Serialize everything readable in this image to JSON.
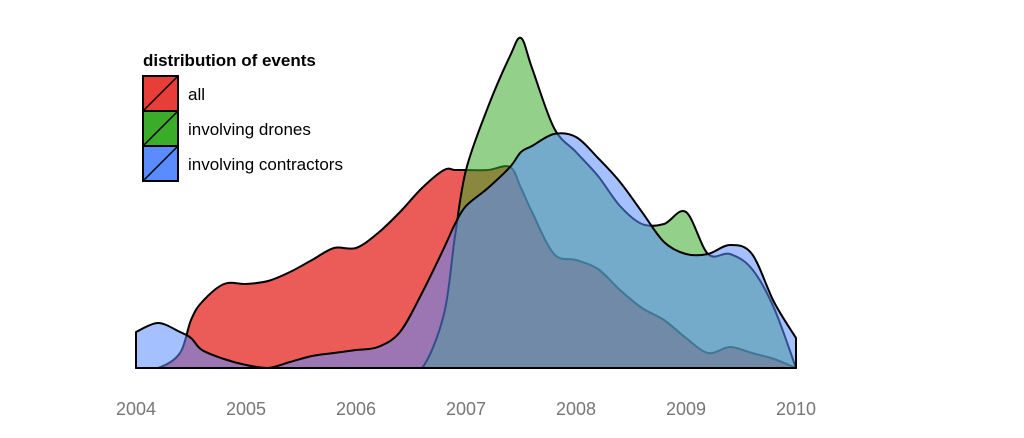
{
  "chart_data": {
    "type": "area",
    "title": "",
    "xlabel": "",
    "ylabel": "",
    "xlim": [
      2004,
      2010
    ],
    "ylim": [
      0,
      1
    ],
    "grid": false,
    "x_ticks": [
      2004,
      2005,
      2006,
      2007,
      2008,
      2009,
      2010
    ],
    "legend": {
      "title": "distribution of events",
      "placement": "top-left"
    },
    "x": [
      2004.0,
      2004.2,
      2004.4,
      2004.5,
      2004.6,
      2004.8,
      2005.0,
      2005.2,
      2005.4,
      2005.6,
      2005.8,
      2006.0,
      2006.2,
      2006.4,
      2006.6,
      2006.8,
      2006.9,
      2007.0,
      2007.2,
      2007.4,
      2007.5,
      2007.6,
      2007.8,
      2008.0,
      2008.2,
      2008.4,
      2008.6,
      2008.8,
      2009.0,
      2009.2,
      2009.4,
      2009.6,
      2009.8,
      2010.0
    ],
    "series": [
      {
        "name": "all",
        "color": "#e83e3a",
        "values": [
          0.0,
          0.0,
          0.05,
          0.16,
          0.22,
          0.28,
          0.28,
          0.29,
          0.32,
          0.36,
          0.4,
          0.4,
          0.45,
          0.52,
          0.6,
          0.66,
          0.66,
          0.66,
          0.66,
          0.67,
          0.6,
          0.52,
          0.38,
          0.36,
          0.33,
          0.26,
          0.2,
          0.16,
          0.1,
          0.05,
          0.07,
          0.05,
          0.03,
          0.0
        ]
      },
      {
        "name": "involving drones",
        "color": "#3aac2a",
        "values": [
          0.0,
          0.0,
          0.0,
          0.0,
          0.0,
          0.0,
          0.0,
          0.0,
          0.0,
          0.0,
          0.0,
          0.0,
          0.0,
          0.0,
          0.0,
          0.18,
          0.44,
          0.66,
          0.87,
          1.04,
          1.1,
          1.0,
          0.8,
          0.72,
          0.64,
          0.54,
          0.48,
          0.48,
          0.52,
          0.38,
          0.38,
          0.33,
          0.2,
          0.0
        ]
      },
      {
        "name": "involving contractors",
        "color": "#5b8cff",
        "values": [
          0.12,
          0.15,
          0.12,
          0.1,
          0.06,
          0.03,
          0.01,
          0.0,
          0.02,
          0.04,
          0.05,
          0.06,
          0.07,
          0.12,
          0.25,
          0.4,
          0.48,
          0.54,
          0.6,
          0.67,
          0.72,
          0.74,
          0.78,
          0.77,
          0.7,
          0.62,
          0.52,
          0.42,
          0.38,
          0.38,
          0.41,
          0.38,
          0.22,
          0.1
        ]
      }
    ]
  }
}
